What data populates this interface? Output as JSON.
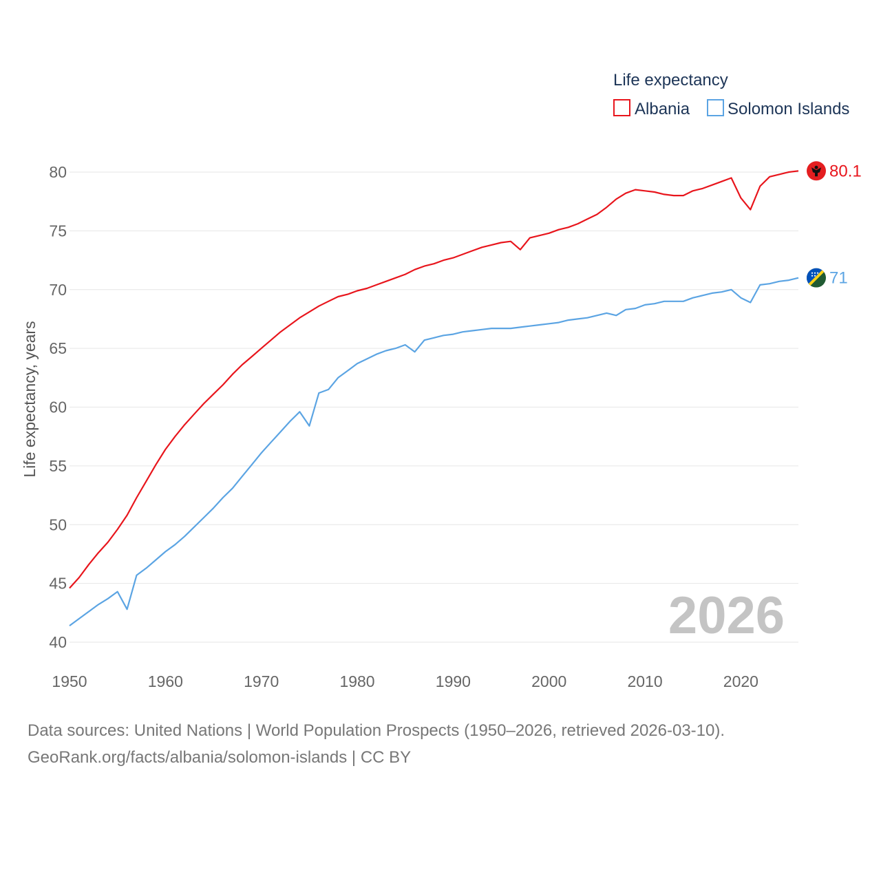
{
  "chart_data": {
    "type": "line",
    "title": "Life expectancy",
    "xlabel": "",
    "ylabel": "Life expectancy, years",
    "xlim": [
      1950,
      2026
    ],
    "ylim": [
      40,
      80
    ],
    "yticks": [
      40,
      45,
      50,
      55,
      60,
      65,
      70,
      75,
      80
    ],
    "xticks": [
      1950,
      1960,
      1970,
      1980,
      1990,
      2000,
      2010,
      2020
    ],
    "year_watermark": "2026",
    "legend_position": "top-right",
    "grid": true,
    "series": [
      {
        "name": "Albania",
        "color": "#e8151c",
        "end_label": "80.1",
        "flag_icon": "albania-flag-icon",
        "x": [
          1950,
          1951,
          1952,
          1953,
          1954,
          1955,
          1956,
          1957,
          1958,
          1959,
          1960,
          1961,
          1962,
          1963,
          1964,
          1965,
          1966,
          1967,
          1968,
          1969,
          1970,
          1971,
          1972,
          1973,
          1974,
          1975,
          1976,
          1977,
          1978,
          1979,
          1980,
          1981,
          1982,
          1983,
          1984,
          1985,
          1986,
          1987,
          1988,
          1989,
          1990,
          1991,
          1992,
          1993,
          1994,
          1995,
          1996,
          1997,
          1998,
          1999,
          2000,
          2001,
          2002,
          2003,
          2004,
          2005,
          2006,
          2007,
          2008,
          2009,
          2010,
          2011,
          2012,
          2013,
          2014,
          2015,
          2016,
          2017,
          2018,
          2019,
          2020,
          2021,
          2022,
          2023,
          2024,
          2025,
          2026
        ],
        "values": [
          44.6,
          45.5,
          46.6,
          47.6,
          48.5,
          49.6,
          50.8,
          52.3,
          53.7,
          55.1,
          56.4,
          57.5,
          58.5,
          59.4,
          60.3,
          61.1,
          61.9,
          62.8,
          63.6,
          64.3,
          65.0,
          65.7,
          66.4,
          67.0,
          67.6,
          68.1,
          68.6,
          69.0,
          69.4,
          69.6,
          69.9,
          70.1,
          70.4,
          70.7,
          71.0,
          71.3,
          71.7,
          72.0,
          72.2,
          72.5,
          72.7,
          73.0,
          73.3,
          73.6,
          73.8,
          74.0,
          74.1,
          73.4,
          74.4,
          74.6,
          74.8,
          75.1,
          75.3,
          75.6,
          76.0,
          76.4,
          77.0,
          77.7,
          78.2,
          78.5,
          78.4,
          78.3,
          78.1,
          78.0,
          78.0,
          78.4,
          78.6,
          78.9,
          79.2,
          79.5,
          77.8,
          76.8,
          78.8,
          79.6,
          79.8,
          80.0,
          80.1
        ]
      },
      {
        "name": "Solomon Islands",
        "color": "#5ba4e3",
        "end_label": "71",
        "flag_icon": "solomon-islands-flag-icon",
        "x": [
          1950,
          1951,
          1952,
          1953,
          1954,
          1955,
          1956,
          1957,
          1958,
          1959,
          1960,
          1961,
          1962,
          1963,
          1964,
          1965,
          1966,
          1967,
          1968,
          1969,
          1970,
          1971,
          1972,
          1973,
          1974,
          1975,
          1976,
          1977,
          1978,
          1979,
          1980,
          1981,
          1982,
          1983,
          1984,
          1985,
          1986,
          1987,
          1988,
          1989,
          1990,
          1991,
          1992,
          1993,
          1994,
          1995,
          1996,
          1997,
          1998,
          1999,
          2000,
          2001,
          2002,
          2003,
          2004,
          2005,
          2006,
          2007,
          2008,
          2009,
          2010,
          2011,
          2012,
          2013,
          2014,
          2015,
          2016,
          2017,
          2018,
          2019,
          2020,
          2021,
          2022,
          2023,
          2024,
          2025,
          2026
        ],
        "values": [
          41.4,
          42.0,
          42.6,
          43.2,
          43.7,
          44.3,
          42.8,
          45.7,
          46.3,
          47.0,
          47.7,
          48.3,
          49.0,
          49.8,
          50.6,
          51.4,
          52.3,
          53.1,
          54.1,
          55.1,
          56.1,
          57.0,
          57.9,
          58.8,
          59.6,
          58.4,
          61.2,
          61.5,
          62.5,
          63.1,
          63.7,
          64.1,
          64.5,
          64.8,
          65.0,
          65.3,
          64.7,
          65.7,
          65.9,
          66.1,
          66.2,
          66.4,
          66.5,
          66.6,
          66.7,
          66.7,
          66.7,
          66.8,
          66.9,
          67.0,
          67.1,
          67.2,
          67.4,
          67.5,
          67.6,
          67.8,
          68.0,
          67.8,
          68.3,
          68.4,
          68.7,
          68.8,
          69.0,
          69.0,
          69.0,
          69.3,
          69.5,
          69.7,
          69.8,
          70.0,
          69.3,
          68.9,
          70.4,
          70.5,
          70.7,
          70.8,
          71.0
        ]
      }
    ]
  },
  "footer": {
    "line1": "Data sources: United Nations | World Population Prospects (1950–2026, retrieved 2026-03-10).",
    "line2": "GeoRank.org/facts/albania/solomon-islands | CC BY"
  }
}
